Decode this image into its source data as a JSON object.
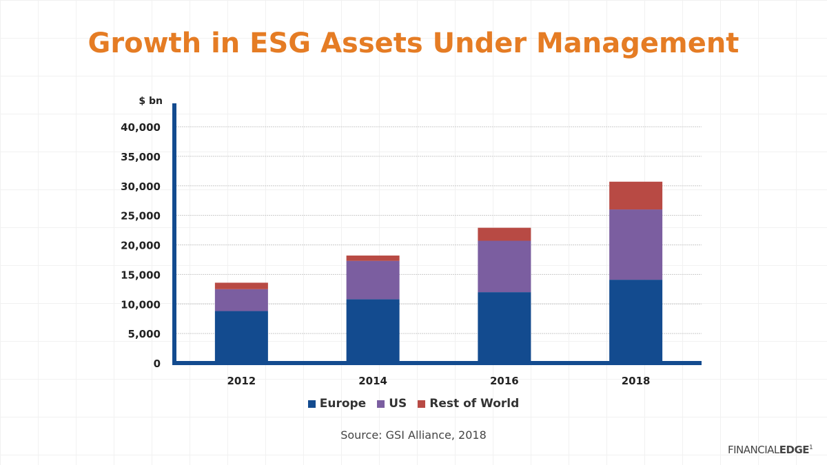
{
  "chart_data": {
    "type": "bar",
    "stacked": true,
    "title": "Growth in ESG Assets Under Management",
    "ylabel": "$ bn",
    "xlabel": "",
    "categories": [
      "2012",
      "2014",
      "2016",
      "2018"
    ],
    "series": [
      {
        "name": "Europe",
        "values": [
          8800,
          10800,
          12000,
          14100
        ],
        "color": "#134b8f"
      },
      {
        "name": "US",
        "values": [
          3700,
          6500,
          8700,
          11900
        ],
        "color": "#7b5ea0"
      },
      {
        "name": "Rest of World",
        "values": [
          1100,
          900,
          2200,
          4700
        ],
        "color": "#b84a44"
      }
    ],
    "ylim": [
      0,
      43000
    ],
    "yticks": [
      0,
      5000,
      10000,
      15000,
      20000,
      25000,
      30000,
      35000,
      40000
    ],
    "ytick_labels": [
      "0",
      "5,000",
      "10,000",
      "15,000",
      "20,000",
      "25,000",
      "30,000",
      "35,000",
      "40,000"
    ],
    "grid": true,
    "legend_position": "bottom"
  },
  "source": "Source: GSI Alliance, 2018",
  "logo": {
    "text_light": "FINANCIAL",
    "text_bold": "EDGE",
    "mark": "1"
  },
  "colors": {
    "title": "#e57c24",
    "axis": "#134b8f"
  }
}
